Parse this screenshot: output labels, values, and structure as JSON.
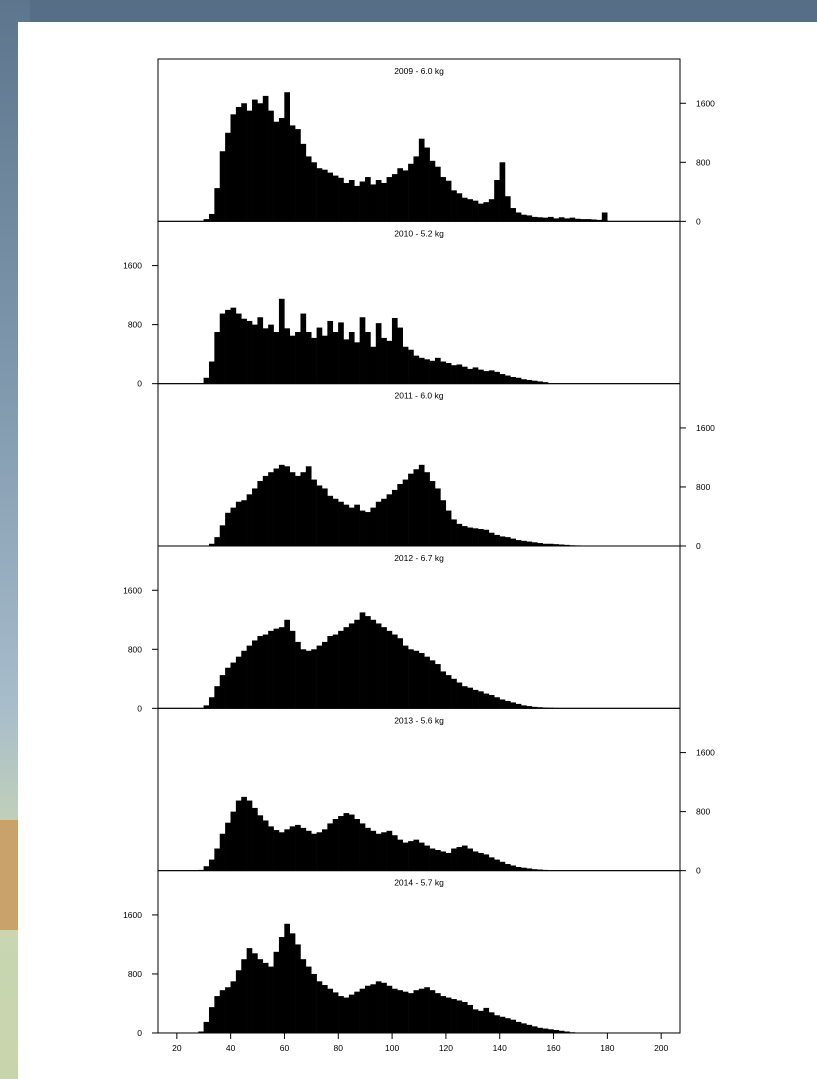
{
  "chart_data": {
    "type": "bar",
    "xlabel": "",
    "ylabel": "",
    "xlim": [
      13,
      207
    ],
    "x_ticks": [
      20,
      40,
      60,
      80,
      100,
      120,
      140,
      160,
      180,
      200
    ],
    "ylim": [
      0,
      2200
    ],
    "y_ticks": [
      0,
      800,
      1600
    ],
    "bin_width": 1,
    "panels": [
      {
        "title": "2009 - 6.0 kg",
        "y_axis_side": "right",
        "x": [
          29,
          31,
          33,
          35,
          37,
          39,
          41,
          43,
          45,
          47,
          49,
          51,
          53,
          55,
          57,
          59,
          61,
          63,
          65,
          67,
          69,
          71,
          73,
          75,
          77,
          79,
          81,
          83,
          85,
          87,
          89,
          91,
          93,
          95,
          97,
          99,
          101,
          103,
          105,
          107,
          109,
          111,
          113,
          115,
          117,
          119,
          121,
          123,
          125,
          127,
          129,
          131,
          133,
          135,
          137,
          139,
          141,
          143,
          145,
          147,
          149,
          151,
          153,
          155,
          157,
          159,
          161,
          163,
          165,
          167,
          169,
          171,
          173,
          175,
          177,
          179
        ],
        "values": [
          5,
          30,
          100,
          450,
          950,
          1200,
          1450,
          1550,
          1600,
          1500,
          1650,
          1600,
          1700,
          1500,
          1350,
          1400,
          1750,
          1300,
          1250,
          1050,
          880,
          800,
          720,
          700,
          660,
          620,
          590,
          520,
          560,
          480,
          540,
          600,
          500,
          560,
          520,
          600,
          640,
          720,
          690,
          780,
          880,
          1120,
          1000,
          820,
          740,
          600,
          550,
          420,
          380,
          320,
          300,
          280,
          240,
          260,
          300,
          560,
          800,
          340,
          180,
          120,
          90,
          80,
          60,
          55,
          50,
          60,
          40,
          55,
          40,
          50,
          35,
          30,
          30,
          25,
          20,
          120
        ]
      },
      {
        "title": "2010 - 5.2 kg",
        "y_axis_side": "left",
        "x": [
          29,
          31,
          33,
          35,
          37,
          39,
          41,
          43,
          45,
          47,
          49,
          51,
          53,
          55,
          57,
          59,
          61,
          63,
          65,
          67,
          69,
          71,
          73,
          75,
          77,
          79,
          81,
          83,
          85,
          87,
          89,
          91,
          93,
          95,
          97,
          99,
          101,
          103,
          105,
          107,
          109,
          111,
          113,
          115,
          117,
          119,
          121,
          123,
          125,
          127,
          129,
          131,
          133,
          135,
          137,
          139,
          141,
          143,
          145,
          147,
          149,
          151,
          153,
          155,
          157
        ],
        "values": [
          5,
          80,
          300,
          700,
          950,
          1000,
          1030,
          950,
          880,
          850,
          800,
          900,
          750,
          800,
          700,
          1150,
          750,
          650,
          700,
          950,
          700,
          620,
          760,
          650,
          850,
          700,
          830,
          600,
          700,
          560,
          900,
          700,
          500,
          820,
          620,
          580,
          890,
          760,
          500,
          460,
          380,
          350,
          330,
          310,
          350,
          300,
          280,
          250,
          260,
          230,
          200,
          220,
          190,
          170,
          180,
          160,
          130,
          110,
          90,
          80,
          60,
          50,
          40,
          30,
          20
        ]
      },
      {
        "title": "2011 - 6.0 kg",
        "y_axis_side": "right",
        "x": [
          31,
          33,
          35,
          37,
          39,
          41,
          43,
          45,
          47,
          49,
          51,
          53,
          55,
          57,
          59,
          61,
          63,
          65,
          67,
          69,
          71,
          73,
          75,
          77,
          79,
          81,
          83,
          85,
          87,
          89,
          91,
          93,
          95,
          97,
          99,
          101,
          103,
          105,
          107,
          109,
          111,
          113,
          115,
          117,
          119,
          121,
          123,
          125,
          127,
          129,
          131,
          133,
          135,
          137,
          139,
          141,
          143,
          145,
          147,
          149,
          151,
          153,
          155,
          157,
          159,
          161,
          163,
          165,
          167,
          169
        ],
        "values": [
          5,
          30,
          120,
          280,
          450,
          520,
          600,
          620,
          700,
          780,
          880,
          950,
          1000,
          1050,
          1100,
          1080,
          1000,
          950,
          1000,
          1080,
          900,
          820,
          780,
          680,
          640,
          600,
          560,
          520,
          560,
          480,
          460,
          520,
          600,
          640,
          700,
          760,
          840,
          900,
          980,
          1040,
          1100,
          1000,
          880,
          780,
          620,
          480,
          360,
          300,
          270,
          250,
          240,
          230,
          220,
          180,
          150,
          130,
          120,
          100,
          80,
          70,
          60,
          50,
          40,
          30,
          30,
          25,
          20,
          15,
          10,
          8
        ]
      },
      {
        "title": "2012 - 6.7 kg",
        "y_axis_side": "left",
        "x": [
          29,
          31,
          33,
          35,
          37,
          39,
          41,
          43,
          45,
          47,
          49,
          51,
          53,
          55,
          57,
          59,
          61,
          63,
          65,
          67,
          69,
          71,
          73,
          75,
          77,
          79,
          81,
          83,
          85,
          87,
          89,
          91,
          93,
          95,
          97,
          99,
          101,
          103,
          105,
          107,
          109,
          111,
          113,
          115,
          117,
          119,
          121,
          123,
          125,
          127,
          129,
          131,
          133,
          135,
          137,
          139,
          141,
          143,
          145,
          147,
          149,
          151,
          153,
          155,
          157,
          159,
          161
        ],
        "values": [
          5,
          40,
          150,
          300,
          450,
          550,
          620,
          700,
          780,
          850,
          920,
          980,
          1000,
          1050,
          1080,
          1100,
          1200,
          1050,
          900,
          800,
          780,
          800,
          850,
          900,
          980,
          1000,
          1050,
          1100,
          1150,
          1200,
          1300,
          1250,
          1200,
          1150,
          1100,
          1050,
          1000,
          950,
          850,
          800,
          780,
          750,
          700,
          650,
          600,
          500,
          450,
          400,
          350,
          300,
          280,
          250,
          230,
          200,
          180,
          150,
          120,
          100,
          80,
          60,
          40,
          30,
          20,
          15,
          10,
          8,
          5
        ]
      },
      {
        "title": "2013 - 5.6 kg",
        "y_axis_side": "right",
        "x": [
          29,
          31,
          33,
          35,
          37,
          39,
          41,
          43,
          45,
          47,
          49,
          51,
          53,
          55,
          57,
          59,
          61,
          63,
          65,
          67,
          69,
          71,
          73,
          75,
          77,
          79,
          81,
          83,
          85,
          87,
          89,
          91,
          93,
          95,
          97,
          99,
          101,
          103,
          105,
          107,
          109,
          111,
          113,
          115,
          117,
          119,
          121,
          123,
          125,
          127,
          129,
          131,
          133,
          135,
          137,
          139,
          141,
          143,
          145,
          147,
          149,
          151,
          153,
          155,
          157
        ],
        "values": [
          10,
          60,
          150,
          300,
          500,
          650,
          800,
          950,
          1000,
          950,
          850,
          750,
          680,
          600,
          550,
          520,
          560,
          600,
          620,
          580,
          540,
          500,
          520,
          560,
          640,
          700,
          740,
          780,
          760,
          700,
          640,
          580,
          540,
          500,
          520,
          540,
          480,
          420,
          380,
          400,
          420,
          380,
          340,
          300,
          280,
          260,
          240,
          300,
          320,
          340,
          300,
          260,
          240,
          220,
          180,
          150,
          120,
          90,
          70,
          50,
          40,
          30,
          20,
          15,
          10
        ]
      },
      {
        "title": "2014 - 5.7 kg",
        "y_axis_side": "left",
        "x": [
          29,
          31,
          33,
          35,
          37,
          39,
          41,
          43,
          45,
          47,
          49,
          51,
          53,
          55,
          57,
          59,
          61,
          63,
          65,
          67,
          69,
          71,
          73,
          75,
          77,
          79,
          81,
          83,
          85,
          87,
          89,
          91,
          93,
          95,
          97,
          99,
          101,
          103,
          105,
          107,
          109,
          111,
          113,
          115,
          117,
          119,
          121,
          123,
          125,
          127,
          129,
          131,
          133,
          135,
          137,
          139,
          141,
          143,
          145,
          147,
          149,
          151,
          153,
          155,
          157,
          159,
          161,
          163,
          165,
          167
        ],
        "values": [
          20,
          150,
          350,
          500,
          580,
          620,
          700,
          850,
          1000,
          1150,
          1080,
          1000,
          950,
          900,
          1100,
          1300,
          1480,
          1350,
          1200,
          1000,
          900,
          800,
          700,
          650,
          600,
          550,
          500,
          480,
          520,
          560,
          600,
          640,
          660,
          700,
          680,
          640,
          600,
          580,
          560,
          540,
          580,
          600,
          620,
          580,
          540,
          500,
          480,
          460,
          440,
          420,
          380,
          320,
          300,
          340,
          280,
          240,
          220,
          200,
          180,
          150,
          130,
          110,
          90,
          70,
          60,
          50,
          40,
          30,
          20,
          10
        ]
      }
    ]
  }
}
